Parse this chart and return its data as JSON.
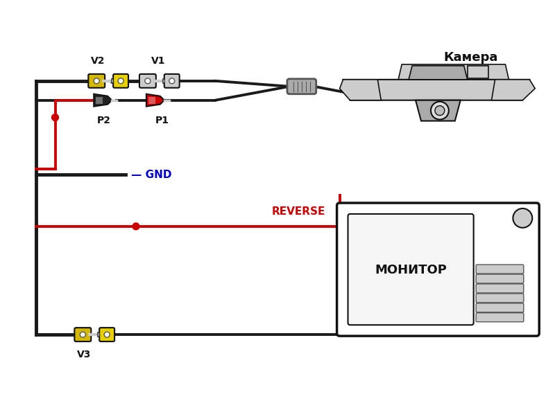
{
  "bg_color": "#ffffff",
  "labels": {
    "camera": "Камера",
    "monitor": "МОНИТОР",
    "gnd": "GND",
    "reverse": "REVERSE",
    "v1": "V1",
    "v2": "V2",
    "p1": "P1",
    "p2": "P2",
    "v3": "V3"
  },
  "colors": {
    "black": "#111111",
    "red": "#cc0000",
    "yellow": "#d4b800",
    "yellow_light": "#e8d000",
    "gray": "#888888",
    "gray_light": "#cccccc",
    "gray_dark": "#555555",
    "blue": "#0000cc",
    "white": "#ffffff",
    "wire_black": "#1a1a1a"
  },
  "lw_wire": 2.8,
  "lw_thick": 3.5
}
